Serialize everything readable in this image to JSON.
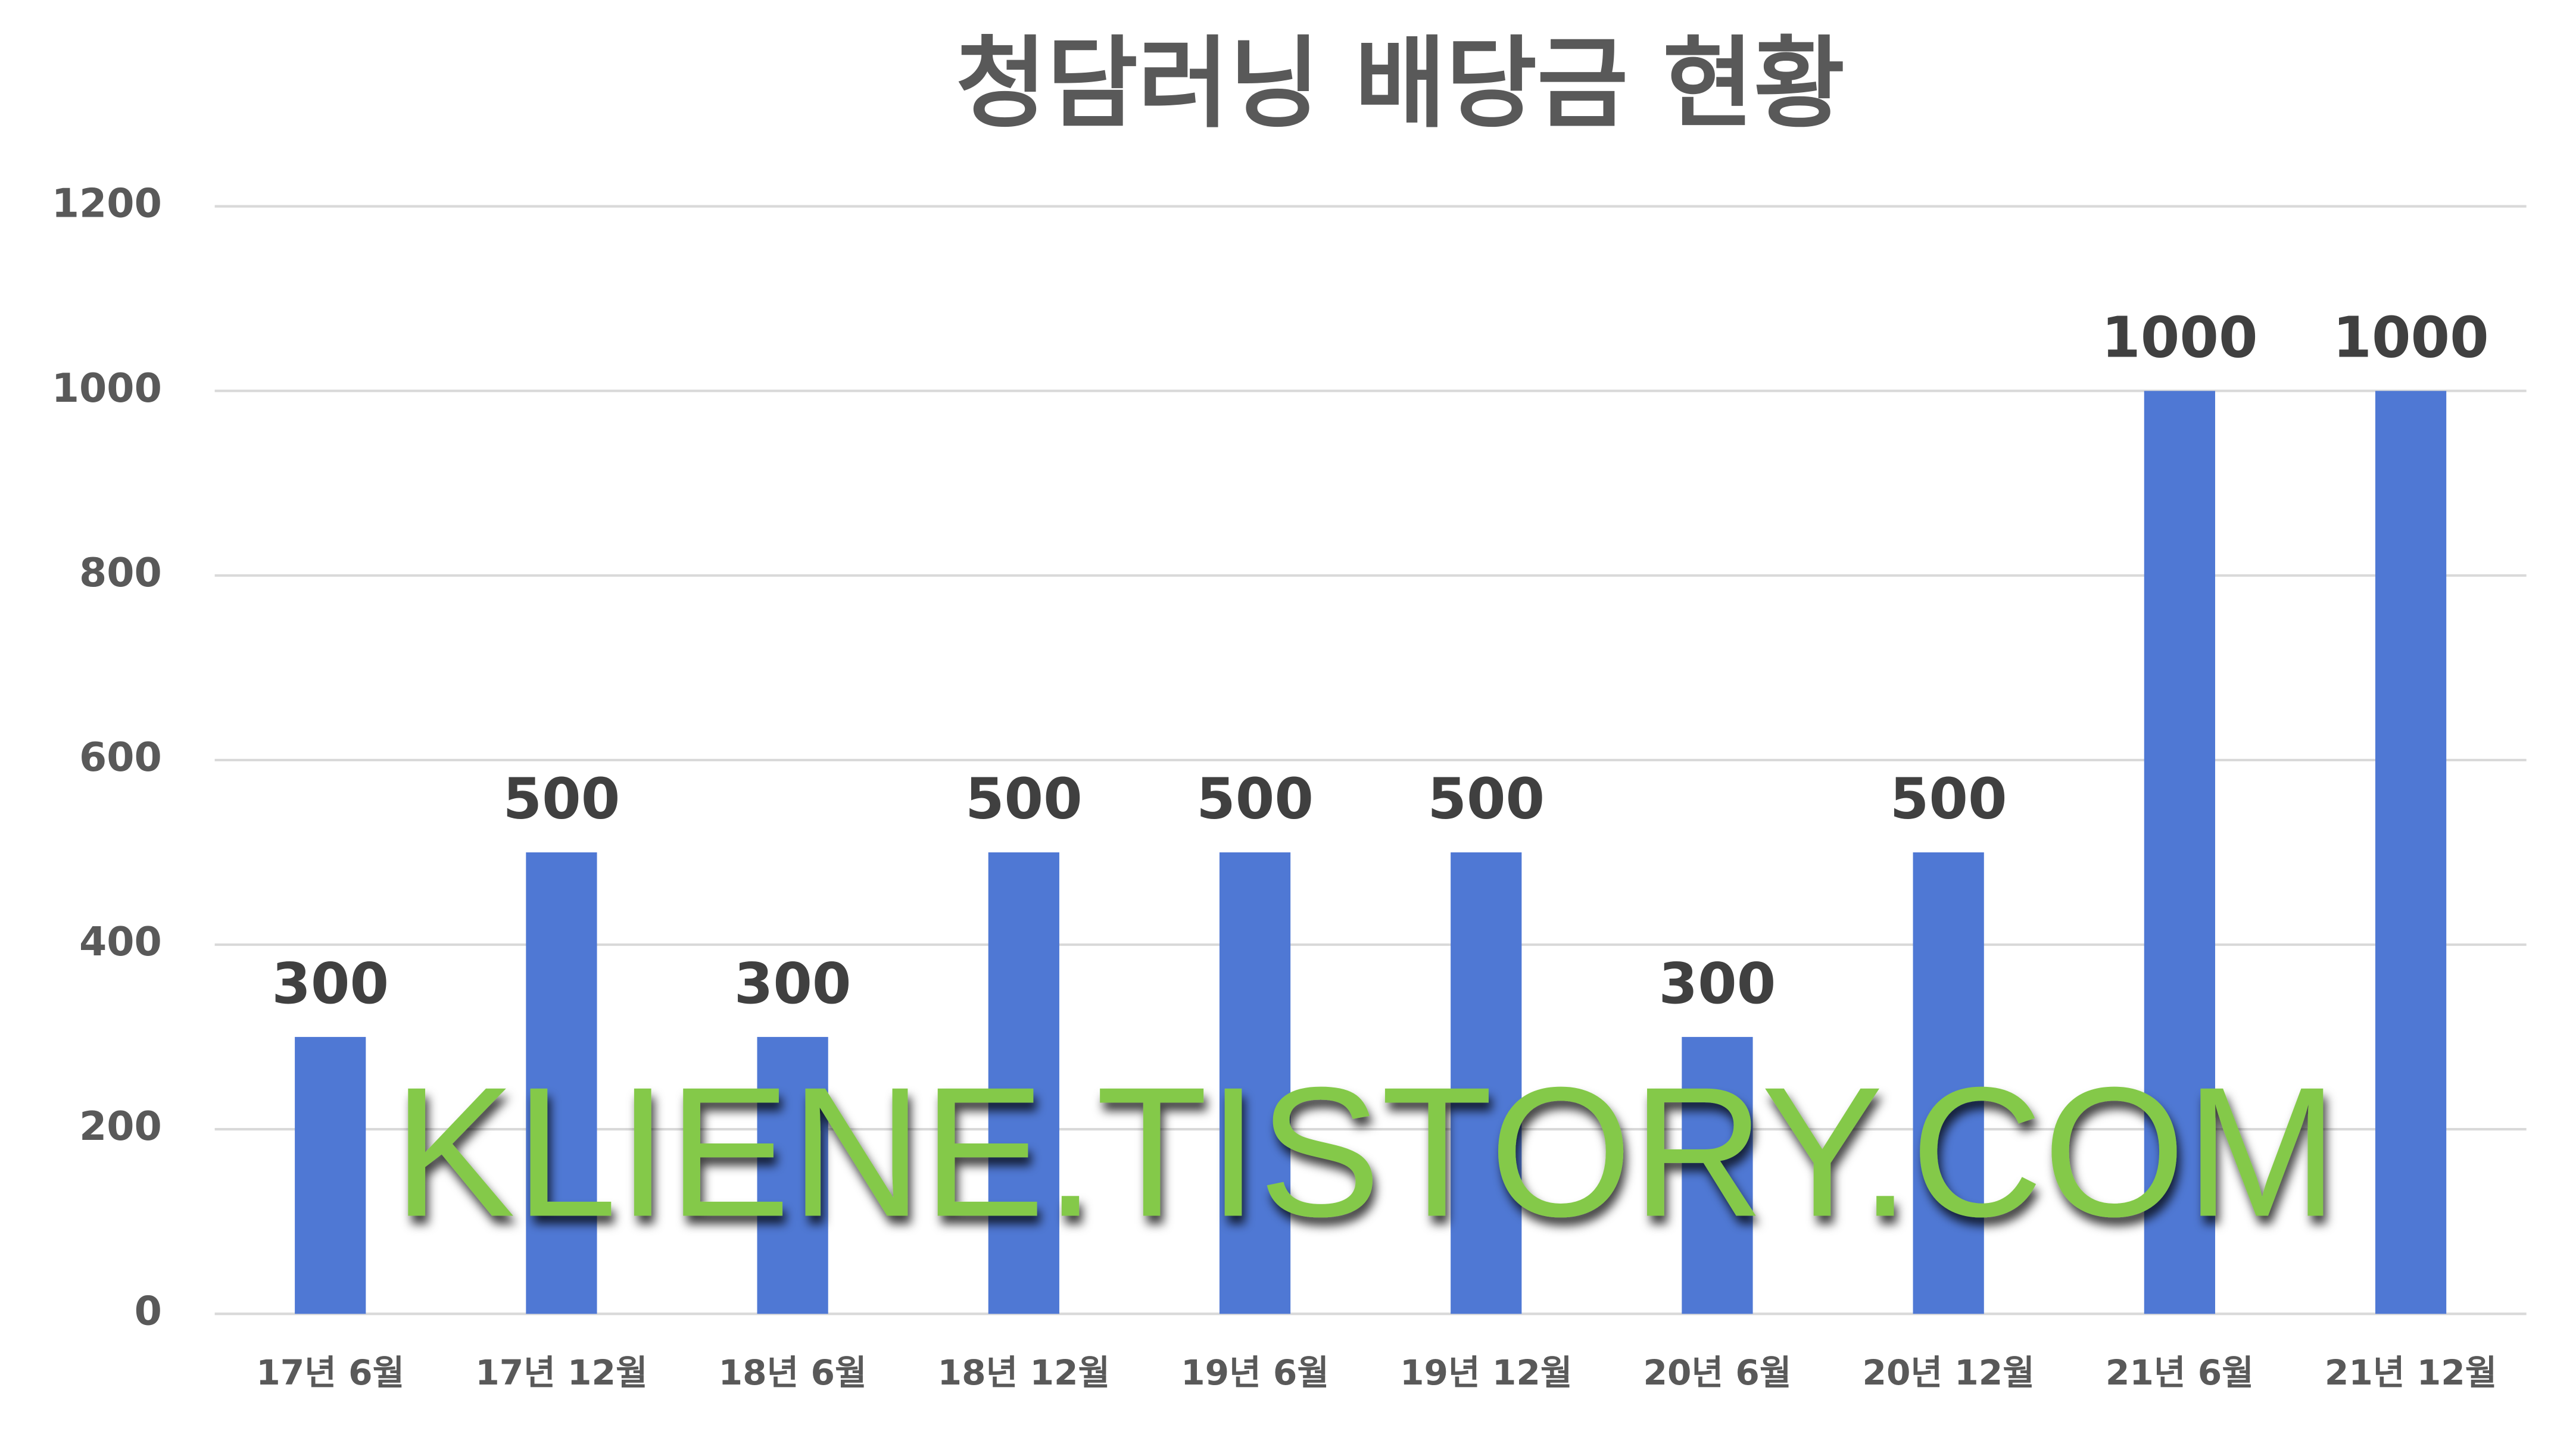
{
  "chart_data": {
    "type": "bar",
    "title": "청담러닝 배당금 현황",
    "categories": [
      "17년 6월",
      "17년 12월",
      "18년 6월",
      "18년 12월",
      "19년 6월",
      "19년 12월",
      "20년 6월",
      "20년 12월",
      "21년 6월",
      "21년 12월"
    ],
    "values": [
      300,
      500,
      300,
      500,
      500,
      500,
      300,
      500,
      1000,
      1000
    ],
    "color": "#4f78d4",
    "ylim": [
      0,
      1200
    ],
    "yticks": [
      0,
      200,
      400,
      600,
      800,
      1000,
      1200
    ],
    "grid": true,
    "watermark": "KLIENE.TISTORY.COM"
  }
}
